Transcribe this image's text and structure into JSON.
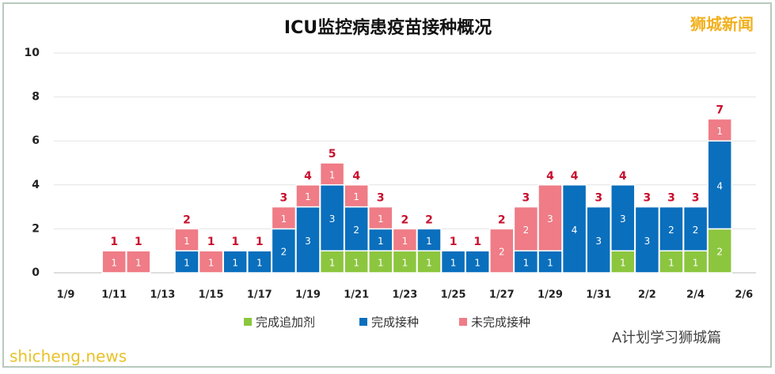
{
  "chart_data": {
    "type": "stacked_bar",
    "title": "ICU监控病患疫苗接种概况",
    "categories": [
      "1/9",
      null,
      "1/11",
      null,
      "1/13",
      null,
      "1/15",
      null,
      "1/17",
      null,
      "1/19",
      null,
      "1/21",
      null,
      "1/23",
      null,
      "1/25",
      null,
      "1/27",
      null,
      "1/29",
      null,
      "1/31",
      null,
      "2/2",
      null,
      "2/4",
      null,
      "2/6"
    ],
    "series": [
      {
        "name": "完成追加剂",
        "color": "#8cc63f",
        "values": [
          null,
          null,
          null,
          null,
          null,
          null,
          null,
          null,
          null,
          null,
          null,
          1,
          1,
          1,
          1,
          1,
          null,
          null,
          null,
          null,
          null,
          null,
          null,
          1,
          null,
          1,
          1,
          2,
          null
        ]
      },
      {
        "name": "完成接种",
        "color": "#0a6fbd",
        "values": [
          null,
          null,
          null,
          null,
          null,
          1,
          null,
          1,
          1,
          2,
          3,
          3,
          2,
          1,
          null,
          1,
          1,
          1,
          null,
          1,
          1,
          4,
          3,
          3,
          3,
          2,
          2,
          4,
          null
        ]
      },
      {
        "name": "未完成接种",
        "color": "#ef7c86",
        "values": [
          null,
          null,
          1,
          1,
          null,
          1,
          1,
          null,
          null,
          1,
          1,
          1,
          1,
          1,
          1,
          null,
          null,
          null,
          2,
          2,
          3,
          null,
          null,
          null,
          null,
          null,
          null,
          1,
          null
        ]
      }
    ],
    "totals": [
      null,
      null,
      1,
      1,
      null,
      2,
      1,
      1,
      1,
      3,
      4,
      5,
      4,
      3,
      2,
      2,
      1,
      1,
      2,
      3,
      4,
      4,
      3,
      4,
      3,
      3,
      3,
      7,
      null
    ],
    "total_color": "#c8102e",
    "ylim": [
      0,
      10
    ],
    "yticks": [
      0,
      2,
      4,
      6,
      8,
      10
    ],
    "grid": true,
    "legend": "bottom",
    "watermark": "狮城新闻",
    "footer_left": "shicheng.news",
    "footer_right": "A计划学习狮城篇"
  }
}
